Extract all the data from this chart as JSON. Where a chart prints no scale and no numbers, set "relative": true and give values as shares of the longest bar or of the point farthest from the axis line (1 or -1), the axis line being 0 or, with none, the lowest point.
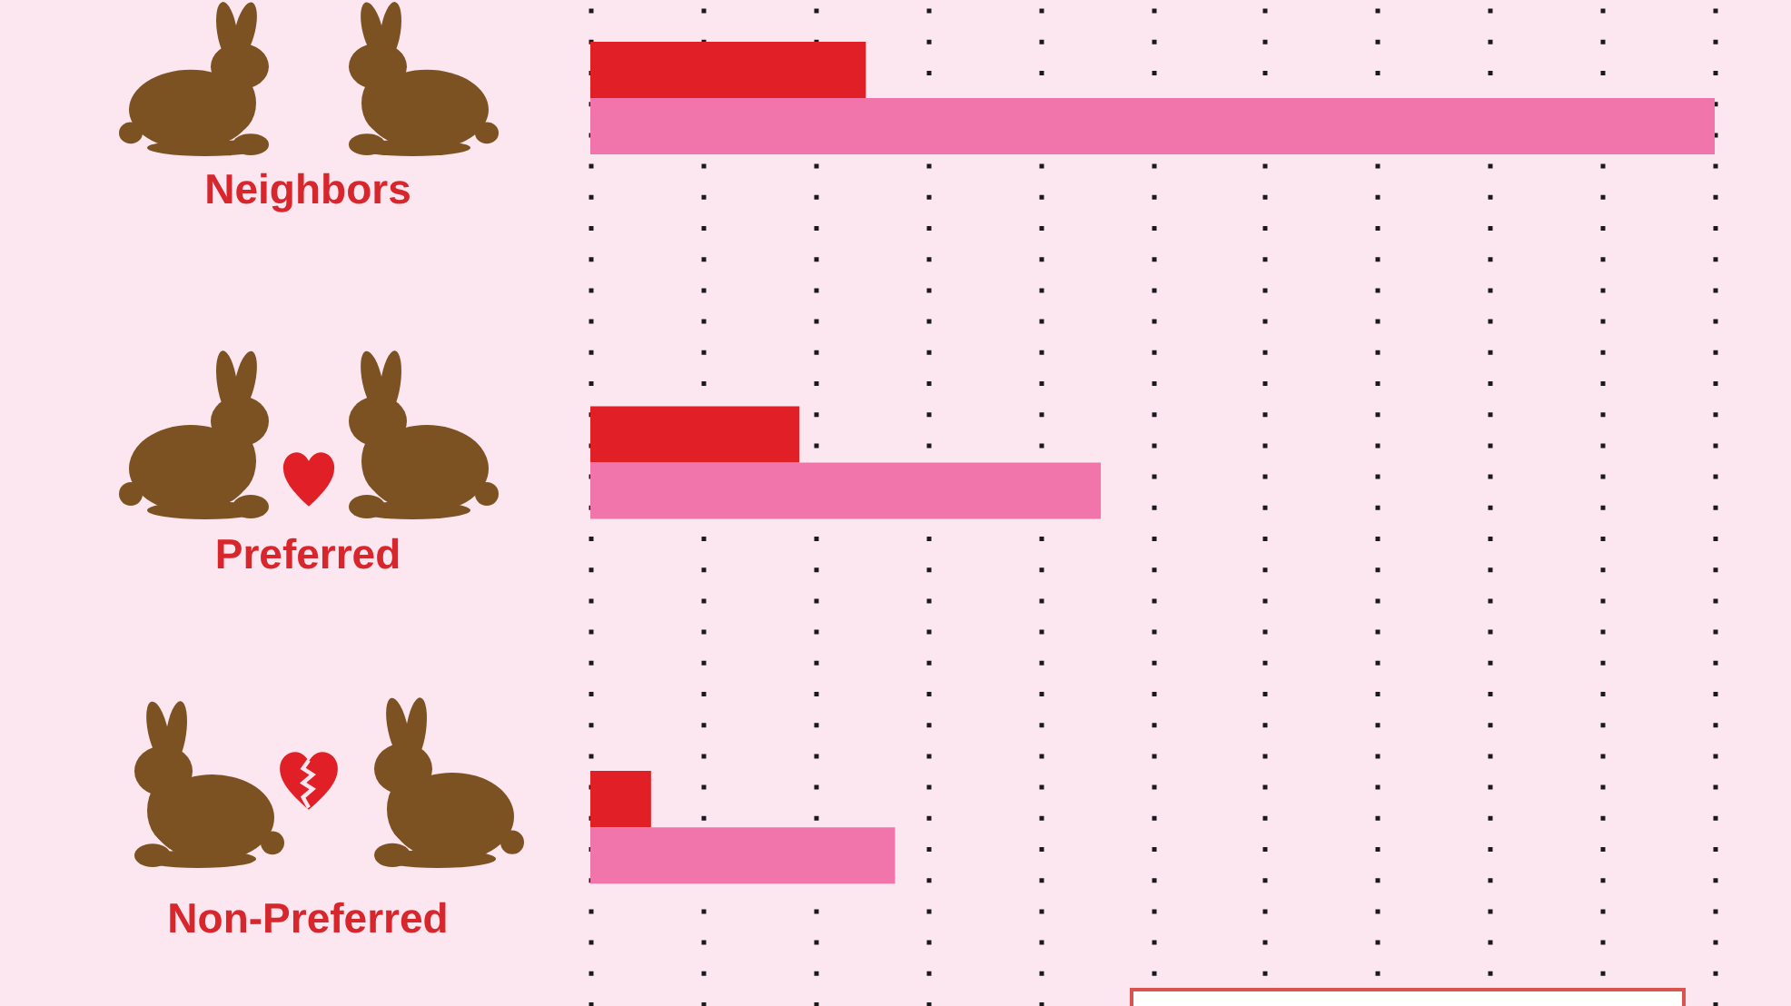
{
  "chart_data": {
    "type": "bar",
    "orientation": "horizontal",
    "relative": true,
    "categories": [
      "Neighbors",
      "Preferred",
      "Non-Preferred"
    ],
    "series": [
      {
        "color": "#e01f26",
        "values": [
          0.245,
          0.186,
          0.054
        ]
      },
      {
        "color": "#f174ab",
        "values": [
          1,
          0.454,
          0.271
        ]
      }
    ],
    "grid": "x"
  }
}
